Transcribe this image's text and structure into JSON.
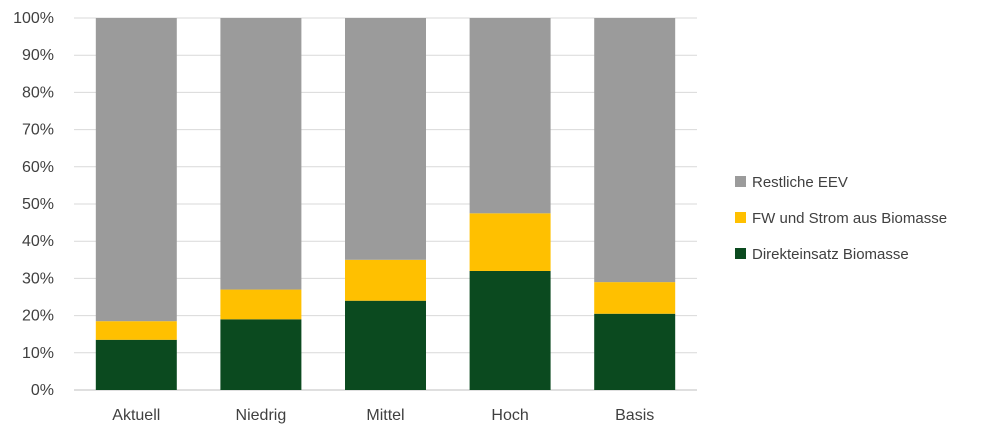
{
  "chart_data": {
    "type": "bar",
    "stacked": true,
    "stack_mode": "percent",
    "categories": [
      "Aktuell",
      "Niedrig",
      "Mittel",
      "Hoch",
      "Basis"
    ],
    "series": [
      {
        "name": "Direkteinsatz Biomasse",
        "color": "#0B4A1F",
        "values": [
          13.5,
          19,
          24,
          32,
          20.5
        ]
      },
      {
        "name": "FW und Strom aus Biomasse",
        "color": "#FFC000",
        "values": [
          5,
          8,
          11,
          15.5,
          8.5
        ]
      },
      {
        "name": "Restliche EEV",
        "color": "#9B9B9B",
        "values": [
          81.5,
          73,
          65,
          52.5,
          71
        ]
      }
    ],
    "ylim": [
      0,
      100
    ],
    "yticks": [
      "0%",
      "10%",
      "20%",
      "30%",
      "40%",
      "50%",
      "60%",
      "70%",
      "80%",
      "90%",
      "100%"
    ],
    "grid": true,
    "legend_position": "right",
    "legend_order": [
      "Restliche EEV",
      "FW und Strom aus Biomasse",
      "Direkteinsatz Biomasse"
    ],
    "title": "",
    "xlabel": "",
    "ylabel": ""
  }
}
